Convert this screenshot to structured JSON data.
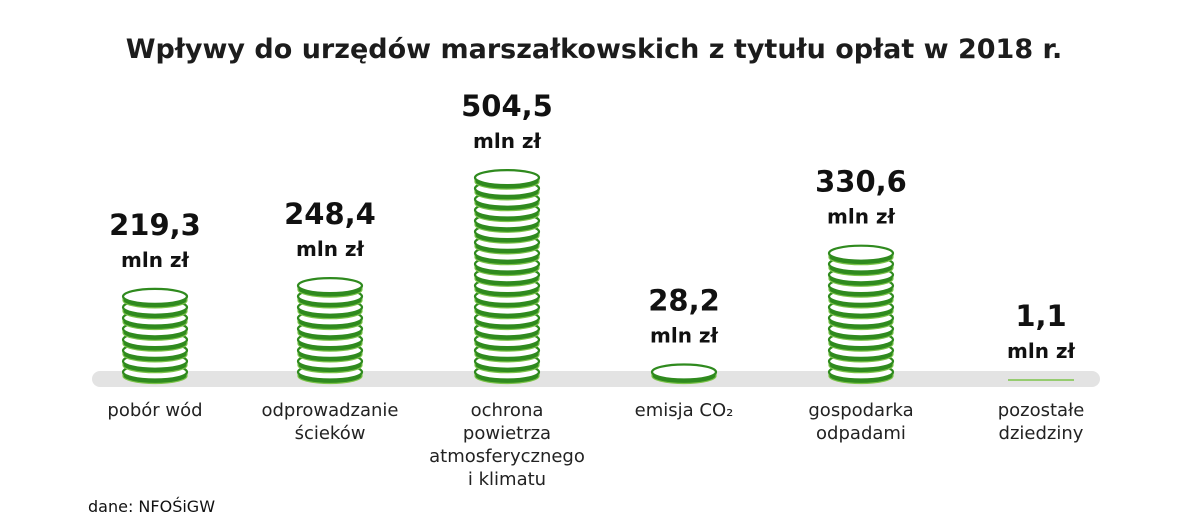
{
  "chart_data": {
    "type": "bar",
    "title": "Wpływy do urzędów marszałkowskich z tytułu opłat w 2018 r.",
    "unit": "mln zł",
    "categories": [
      [
        "pobór wód"
      ],
      [
        "odprowadzanie",
        "ścieków"
      ],
      [
        "ochrona",
        "powietrza",
        "atmosferycznego",
        "i klimatu"
      ],
      [
        "emisja CO₂"
      ],
      [
        "gospodarka",
        "odpadami"
      ],
      [
        "pozostałe",
        "dziedziny"
      ]
    ],
    "values": [
      219.3,
      248.4,
      504.5,
      28.2,
      330.6,
      1.1
    ],
    "value_labels": [
      "219,3",
      "248,4",
      "504,5",
      "28,2",
      "330,6",
      "1,1"
    ],
    "colors": {
      "coin_dark": "#2f8a1e",
      "coin_light": "#7cc44a",
      "baseline": "#e3e3e3"
    }
  },
  "source": "dane: NFOŚiGW"
}
